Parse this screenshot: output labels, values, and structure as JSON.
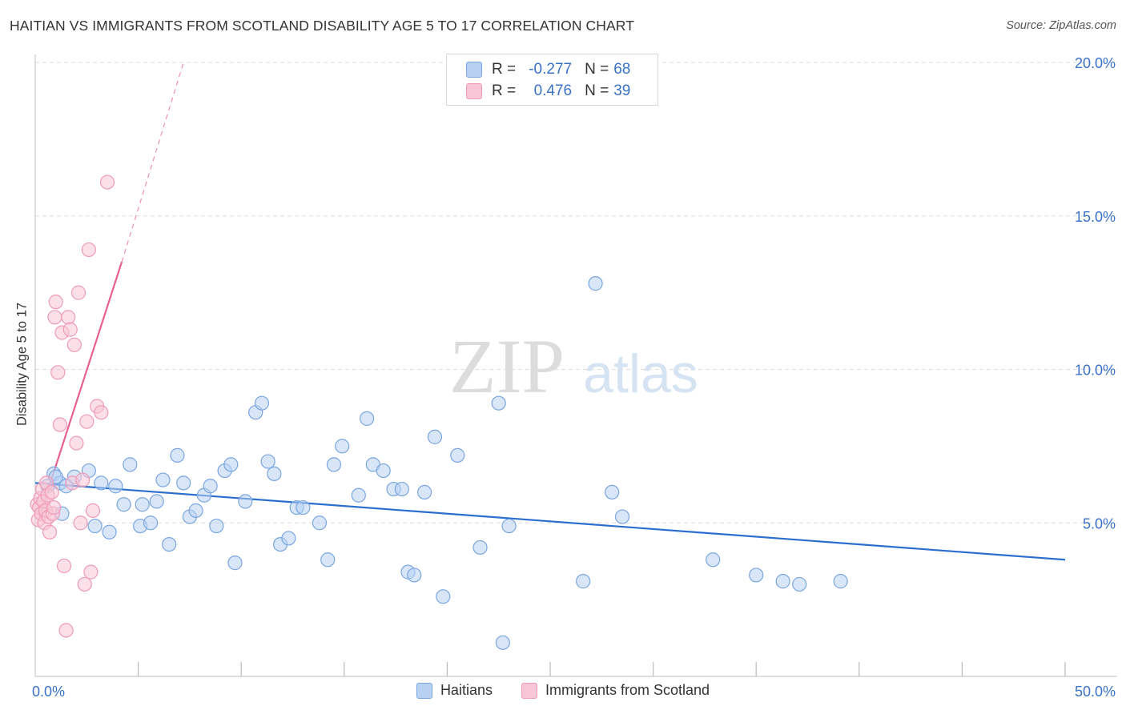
{
  "header": {
    "title": "HAITIAN VS IMMIGRANTS FROM SCOTLAND DISABILITY AGE 5 TO 17 CORRELATION CHART",
    "source": "Source: ZipAtlas.com"
  },
  "legend": {
    "rows": [
      {
        "r_label": "R =",
        "r_value": "-0.277",
        "n_label": "N =",
        "n_value": "68"
      },
      {
        "r_label": "R =",
        "r_value": "0.476",
        "n_label": "N =",
        "n_value": "39"
      }
    ],
    "series_names": [
      "Haitians",
      "Immigrants from Scotland"
    ]
  },
  "watermark": {
    "zip": "ZIP",
    "atlas": "atlas"
  },
  "colors": {
    "blue_fill": "#b8d1f3",
    "blue_stroke": "#7aa6e0",
    "blue_line": "#2b6fce",
    "pink_fill": "#f8c6d6",
    "pink_stroke": "#ef9ab6",
    "pink_line": "#e8608c",
    "tick_text": "#3a72c6",
    "grid": "#dddddd"
  },
  "chart_data": {
    "type": "scatter",
    "title": "HAITIAN VS IMMIGRANTS FROM SCOTLAND DISABILITY AGE 5 TO 17 CORRELATION CHART",
    "xlabel": "",
    "ylabel": "Disability Age 5 to 17",
    "xlim": [
      0,
      50
    ],
    "ylim": [
      0,
      20
    ],
    "x_tick_labels": [
      {
        "value": 0,
        "label": "0.0%"
      },
      {
        "value": 50,
        "label": "50.0%"
      }
    ],
    "y_tick_labels": [
      {
        "value": 5,
        "label": "5.0%"
      },
      {
        "value": 10,
        "label": "10.0%"
      },
      {
        "value": 15,
        "label": "15.0%"
      },
      {
        "value": 20,
        "label": "20.0%"
      }
    ],
    "x_minor_ticks": [
      5,
      10,
      15,
      20,
      25,
      30,
      35,
      40,
      45,
      50
    ],
    "grid": true,
    "legend_position": "top-center",
    "series": [
      {
        "name": "Haitians",
        "color": "#7aa6e0",
        "points": [
          [
            0.6,
            6.2
          ],
          [
            0.9,
            6.6
          ],
          [
            1.2,
            6.3
          ],
          [
            1.3,
            5.3
          ],
          [
            1.9,
            6.5
          ],
          [
            2.6,
            6.7
          ],
          [
            2.9,
            4.9
          ],
          [
            3.2,
            6.3
          ],
          [
            3.6,
            4.7
          ],
          [
            3.9,
            6.2
          ],
          [
            4.3,
            5.6
          ],
          [
            4.6,
            6.9
          ],
          [
            5.1,
            4.9
          ],
          [
            5.2,
            5.6
          ],
          [
            5.6,
            5.0
          ],
          [
            5.9,
            5.7
          ],
          [
            6.2,
            6.4
          ],
          [
            6.5,
            4.3
          ],
          [
            6.9,
            7.2
          ],
          [
            7.2,
            6.3
          ],
          [
            7.5,
            5.2
          ],
          [
            7.8,
            5.4
          ],
          [
            8.2,
            5.9
          ],
          [
            8.5,
            6.2
          ],
          [
            8.8,
            4.9
          ],
          [
            9.2,
            6.7
          ],
          [
            9.5,
            6.9
          ],
          [
            9.7,
            3.7
          ],
          [
            10.2,
            5.7
          ],
          [
            10.7,
            8.6
          ],
          [
            11.0,
            8.9
          ],
          [
            11.3,
            7.0
          ],
          [
            11.6,
            6.6
          ],
          [
            11.9,
            4.3
          ],
          [
            12.3,
            4.5
          ],
          [
            12.7,
            5.5
          ],
          [
            13.0,
            5.5
          ],
          [
            13.8,
            5.0
          ],
          [
            14.2,
            3.8
          ],
          [
            14.5,
            6.9
          ],
          [
            14.9,
            7.5
          ],
          [
            15.7,
            5.9
          ],
          [
            16.1,
            8.4
          ],
          [
            16.4,
            6.9
          ],
          [
            16.9,
            6.7
          ],
          [
            17.4,
            6.1
          ],
          [
            17.8,
            6.1
          ],
          [
            18.1,
            3.4
          ],
          [
            18.4,
            3.3
          ],
          [
            18.9,
            6.0
          ],
          [
            19.4,
            7.8
          ],
          [
            19.8,
            2.6
          ],
          [
            20.5,
            7.2
          ],
          [
            21.6,
            4.2
          ],
          [
            22.5,
            8.9
          ],
          [
            22.7,
            1.1
          ],
          [
            23.0,
            4.9
          ],
          [
            26.6,
            3.1
          ],
          [
            27.2,
            12.8
          ],
          [
            28.0,
            6.0
          ],
          [
            28.5,
            5.2
          ],
          [
            32.9,
            3.8
          ],
          [
            35.0,
            3.3
          ],
          [
            36.3,
            3.1
          ],
          [
            37.1,
            3.0
          ],
          [
            39.1,
            3.1
          ],
          [
            1.5,
            6.2
          ],
          [
            1.0,
            6.5
          ]
        ],
        "trendline": [
          [
            0,
            6.3
          ],
          [
            50,
            3.8
          ]
        ]
      },
      {
        "name": "Immigrants from Scotland",
        "color": "#ef9ab6",
        "points": [
          [
            0.1,
            5.6
          ],
          [
            0.15,
            5.1
          ],
          [
            0.2,
            5.5
          ],
          [
            0.25,
            5.8
          ],
          [
            0.3,
            5.3
          ],
          [
            0.35,
            6.1
          ],
          [
            0.4,
            5.7
          ],
          [
            0.45,
            5.0
          ],
          [
            0.5,
            5.4
          ],
          [
            0.55,
            6.3
          ],
          [
            0.6,
            5.9
          ],
          [
            0.65,
            5.2
          ],
          [
            0.7,
            4.7
          ],
          [
            0.8,
            6.0
          ],
          [
            0.85,
            5.3
          ],
          [
            0.9,
            5.5
          ],
          [
            0.95,
            11.7
          ],
          [
            1.0,
            12.2
          ],
          [
            1.1,
            9.9
          ],
          [
            1.2,
            8.2
          ],
          [
            1.3,
            11.2
          ],
          [
            1.4,
            3.6
          ],
          [
            1.5,
            1.5
          ],
          [
            1.6,
            11.7
          ],
          [
            1.7,
            11.3
          ],
          [
            1.8,
            6.3
          ],
          [
            1.9,
            10.8
          ],
          [
            2.0,
            7.6
          ],
          [
            2.1,
            12.5
          ],
          [
            2.2,
            5.0
          ],
          [
            2.3,
            6.4
          ],
          [
            2.4,
            3.0
          ],
          [
            2.5,
            8.3
          ],
          [
            2.6,
            13.9
          ],
          [
            2.7,
            3.4
          ],
          [
            2.8,
            5.4
          ],
          [
            3.0,
            8.8
          ],
          [
            3.2,
            8.6
          ],
          [
            3.5,
            16.1
          ]
        ],
        "trendline": [
          [
            0.2,
            5.2
          ],
          [
            4.2,
            13.5
          ]
        ],
        "trendline_dashed_extension": [
          [
            4.2,
            13.5
          ],
          [
            7.2,
            20.0
          ]
        ]
      }
    ]
  }
}
